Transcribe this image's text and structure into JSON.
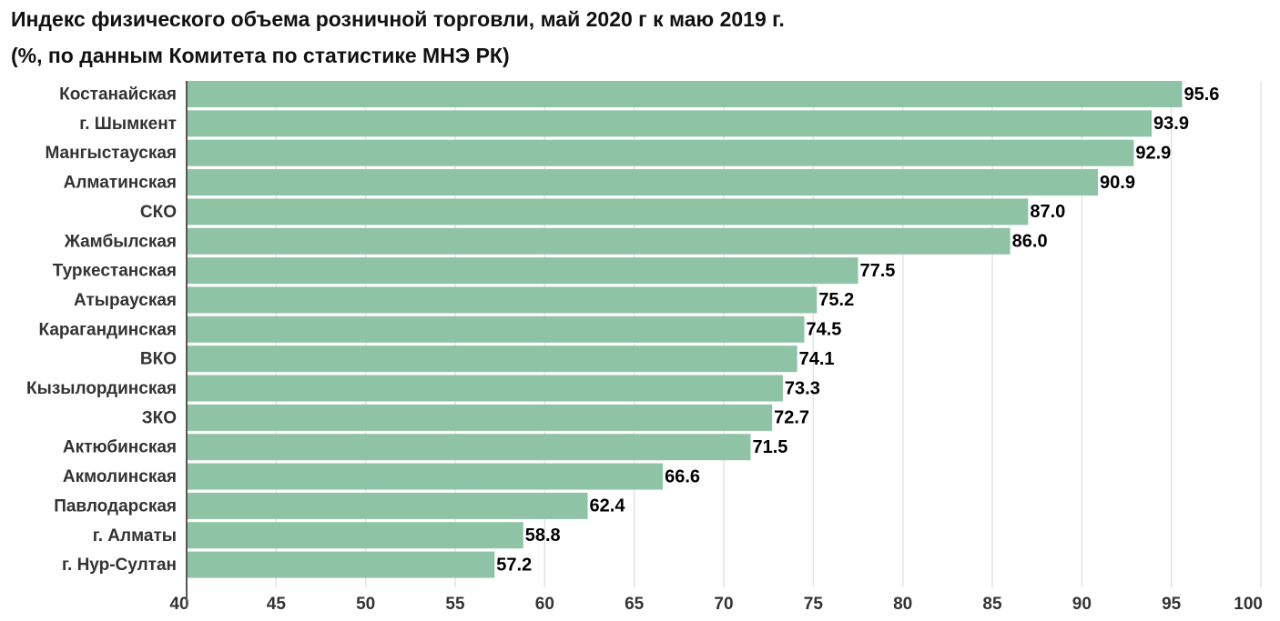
{
  "chart_data": {
    "type": "bar",
    "orientation": "horizontal",
    "title": "Индекс физического объема розничной торговли, май 2020 г к маю 2019 г.",
    "subtitle": "(%, по данным Комитета по статистике МНЭ РК)",
    "xlabel": "",
    "ylabel": "",
    "categories": [
      "Костанайская",
      "г. Шымкент",
      "Мангыстауская",
      "Алматинская",
      "СКО",
      "Жамбылская",
      "Туркестанская",
      "Атырауская",
      "Карагандинская",
      "ВКО",
      "Кызылординская",
      "ЗКО",
      "Актюбинская",
      "Акмолинская",
      "Павлодарская",
      "г. Алматы",
      "г. Нур-Султан"
    ],
    "values": [
      95.6,
      93.9,
      92.9,
      90.9,
      87.0,
      86.0,
      77.5,
      75.2,
      74.5,
      74.1,
      73.3,
      72.7,
      71.5,
      66.6,
      62.4,
      58.8,
      57.2
    ],
    "value_labels": [
      "95.6",
      "93.9",
      "92.9",
      "90.9",
      "87.0",
      "86.0",
      "77.5",
      "75.2",
      "74.5",
      "74.1",
      "73.3",
      "72.7",
      "71.5",
      "66.6",
      "62.4",
      "58.8",
      "57.2"
    ],
    "xlim": [
      40,
      100
    ],
    "xticks": [
      40,
      45,
      50,
      55,
      60,
      65,
      70,
      75,
      80,
      85,
      90,
      95,
      100
    ],
    "xtick_labels": [
      "40",
      "45",
      "50",
      "55",
      "60",
      "65",
      "70",
      "75",
      "80",
      "85",
      "90",
      "95",
      "100"
    ],
    "grid": true,
    "legend": "none",
    "colors": {
      "bar": "#8fc3a6",
      "grid": "#e3e3e3",
      "axis": "#555555"
    }
  }
}
